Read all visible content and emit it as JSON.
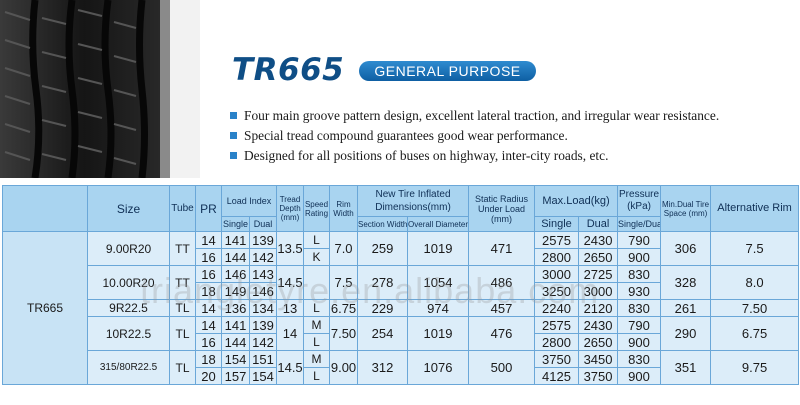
{
  "product": {
    "model": "TR665",
    "category": "GENERAL PURPOSE"
  },
  "features": [
    "Four main groove pattern design, excellent lateral traction, and irregular wear resistance.",
    "Special tread compound guarantees good wear performance.",
    "Designed for all positions of buses on highway, inter-city roads, etc."
  ],
  "colors": {
    "title": "#0f4e86",
    "badge": "#1a70b8",
    "header_bg": "#a9d4f0",
    "row_bg": "#dcedf9",
    "bullet": "#2a82c9"
  },
  "table": {
    "headers": {
      "size": "Size",
      "tube": "Tube",
      "pr": "PR",
      "load_index": "Load Index",
      "load_index_single": "Single",
      "load_index_dual": "Dual",
      "tread_depth": "Tread Depth (mm)",
      "speed_rating": "Speed Rating",
      "rim_width": "Rim Width",
      "new_tire_dims": "New Tire Inflated Dimensions(mm)",
      "section_width": "Section Width",
      "overall_diameter": "Overall Diameter",
      "static_radius": "Static Radius Under Load (mm)",
      "max_load": "Max.Load(kg)",
      "max_load_single": "Single",
      "max_load_dual": "Dual",
      "pressure": "Pressure (kPa)",
      "pressure_sub": "Single/Dual",
      "min_dual_space": "Min.Dual Tire Space (mm)",
      "alt_rim": "Alternative Rim"
    },
    "model": "TR665",
    "groups": [
      {
        "size": "9.00R20",
        "tube": "TT",
        "tread": "13.5",
        "rim": "7.0",
        "section": "259",
        "overall": "1019",
        "static": "471",
        "space": "306",
        "alt": "7.5",
        "rows": [
          {
            "pr": "14",
            "li_s": "141",
            "li_d": "139",
            "speed": "L",
            "load_s": "2575",
            "load_d": "2430",
            "pressure": "790"
          },
          {
            "pr": "16",
            "li_s": "144",
            "li_d": "142",
            "speed": "K",
            "load_s": "2800",
            "load_d": "2650",
            "pressure": "900"
          }
        ]
      },
      {
        "size": "10.00R20",
        "tube": "TT",
        "tread": "14.5",
        "rim": "7.5",
        "section": "278",
        "overall": "1054",
        "static": "486",
        "space": "328",
        "alt": "8.0",
        "rows": [
          {
            "pr": "16",
            "li_s": "146",
            "li_d": "143",
            "speed": "",
            "load_s": "3000",
            "load_d": "2725",
            "pressure": "830"
          },
          {
            "pr": "18",
            "li_s": "149",
            "li_d": "146",
            "speed": "",
            "load_s": "3250",
            "load_d": "3000",
            "pressure": "930"
          }
        ]
      },
      {
        "size": "9R22.5",
        "tube": "TL",
        "tread": "13",
        "rim": "6.75",
        "section": "229",
        "overall": "974",
        "static": "457",
        "space": "261",
        "alt": "7.50",
        "rows": [
          {
            "pr": "14",
            "li_s": "136",
            "li_d": "134",
            "speed": "L",
            "load_s": "2240",
            "load_d": "2120",
            "pressure": "830"
          }
        ]
      },
      {
        "size": "10R22.5",
        "tube": "TL",
        "tread": "14",
        "rim": "7.50",
        "section": "254",
        "overall": "1019",
        "static": "476",
        "space": "290",
        "alt": "6.75",
        "rows": [
          {
            "pr": "14",
            "li_s": "141",
            "li_d": "139",
            "speed": "M",
            "load_s": "2575",
            "load_d": "2430",
            "pressure": "790"
          },
          {
            "pr": "16",
            "li_s": "144",
            "li_d": "142",
            "speed": "L",
            "load_s": "2800",
            "load_d": "2650",
            "pressure": "900"
          }
        ]
      },
      {
        "size": "315/80R22.5",
        "tube": "TL",
        "tread": "14.5",
        "rim": "9.00",
        "section": "312",
        "overall": "1076",
        "static": "500",
        "space": "351",
        "alt": "9.75",
        "rows": [
          {
            "pr": "18",
            "li_s": "154",
            "li_d": "151",
            "speed": "M",
            "load_s": "3750",
            "load_d": "3450",
            "pressure": "830"
          },
          {
            "pr": "20",
            "li_s": "157",
            "li_d": "154",
            "speed": "L",
            "load_s": "4125",
            "load_d": "3750",
            "pressure": "900"
          }
        ]
      }
    ]
  },
  "watermark": "triangletyre.en.alibaba.com"
}
